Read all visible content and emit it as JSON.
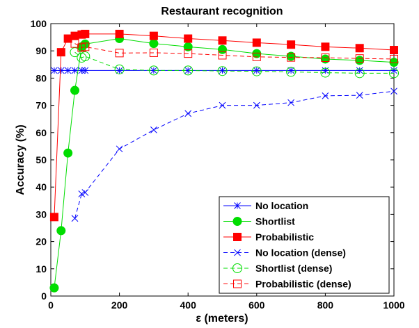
{
  "chart_data": {
    "type": "line",
    "title": "Restaurant recognition",
    "xlabel": "ε (meters)",
    "ylabel": "Accuracy (%)",
    "xlim": [
      0,
      1000
    ],
    "ylim": [
      0,
      100
    ],
    "xticks": [
      0,
      200,
      400,
      600,
      800,
      1000
    ],
    "yticks": [
      0,
      10,
      20,
      30,
      40,
      50,
      60,
      70,
      80,
      90,
      100
    ],
    "grid": false,
    "legend_position": "bottom-right",
    "series": [
      {
        "name": "No location",
        "color": "#0000ff",
        "line": "solid",
        "marker": "asterisk",
        "filled": false,
        "x": [
          10,
          30,
          50,
          70,
          90,
          100,
          200,
          300,
          400,
          500,
          600,
          700,
          800,
          900,
          1000
        ],
        "y": [
          82.8,
          82.8,
          82.8,
          82.8,
          82.8,
          82.8,
          82.8,
          82.8,
          82.8,
          82.8,
          82.8,
          82.8,
          82.8,
          82.8,
          82.8
        ]
      },
      {
        "name": "Shortlist",
        "color": "#00dd00",
        "line": "solid",
        "marker": "circle",
        "filled": true,
        "x": [
          10,
          30,
          50,
          70,
          90,
          100,
          200,
          300,
          400,
          500,
          600,
          700,
          800,
          900,
          1000
        ],
        "y": [
          3,
          24,
          52.5,
          75.5,
          91.5,
          92.5,
          94.5,
          92.7,
          91.5,
          90.5,
          89,
          88,
          87,
          86.5,
          85.8
        ]
      },
      {
        "name": "Probabilistic",
        "color": "#ff0000",
        "line": "solid",
        "marker": "square",
        "filled": true,
        "x": [
          10,
          30,
          50,
          70,
          90,
          100,
          200,
          300,
          400,
          500,
          600,
          700,
          800,
          900,
          1000
        ],
        "y": [
          29,
          89.5,
          94.5,
          95.5,
          96,
          96.2,
          96.2,
          95.5,
          94.5,
          93.8,
          93,
          92.3,
          91.5,
          91,
          90.3
        ]
      },
      {
        "name": "No location (dense)",
        "color": "#0000ff",
        "line": "dashed",
        "marker": "x",
        "filled": false,
        "x": [
          70,
          90,
          100,
          200,
          300,
          400,
          500,
          600,
          700,
          800,
          900,
          1000
        ],
        "y": [
          28.5,
          37.5,
          38,
          54,
          61,
          67,
          70,
          70,
          71,
          73.5,
          73.7,
          75.2
        ]
      },
      {
        "name": "Shortlist (dense)",
        "color": "#00dd00",
        "line": "dashed",
        "marker": "circle",
        "filled": false,
        "x": [
          70,
          90,
          100,
          200,
          300,
          400,
          500,
          600,
          700,
          800,
          900,
          1000
        ],
        "y": [
          89.5,
          87.5,
          88,
          83.2,
          82.8,
          82.8,
          82.6,
          82.5,
          82.3,
          82,
          81.8,
          81.8
        ]
      },
      {
        "name": "Probabilistic (dense)",
        "color": "#ff0000",
        "line": "dashed",
        "marker": "square",
        "filled": false,
        "x": [
          70,
          90,
          100,
          200,
          300,
          400,
          500,
          600,
          700,
          800,
          900,
          1000
        ],
        "y": [
          92.7,
          91.2,
          91.5,
          89.2,
          89.3,
          89,
          88.4,
          87.8,
          87.6,
          87.5,
          87.2,
          87
        ]
      }
    ]
  }
}
